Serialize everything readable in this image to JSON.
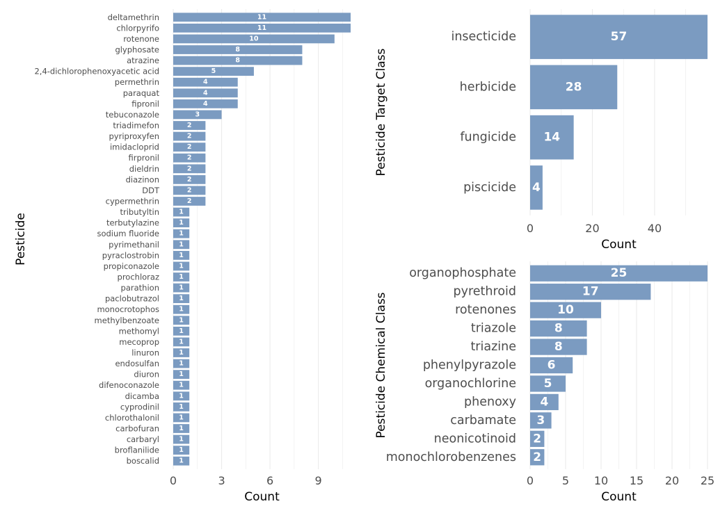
{
  "colors": {
    "bar": "#7b9bc1",
    "grid": "#ebebeb",
    "label_text": "#ffffff",
    "tick_text": "#4d4d4d",
    "axis_title": "#000000"
  },
  "chart_data": [
    {
      "type": "bar",
      "orientation": "horizontal",
      "xlabel": "Count",
      "ylabel": "Pesticide",
      "xlim": [
        0,
        11
      ],
      "xticks": [
        0,
        3,
        6,
        9
      ],
      "grid": true,
      "categories": [
        "deltamethrin",
        "chlorpyrifo",
        "rotenone",
        "glyphosate",
        "atrazine",
        "2,4-dichlorophenoxyacetic acid",
        "permethrin",
        "paraquat",
        "fipronil",
        "tebuconazole",
        "triadimefon",
        "pyriproxyfen",
        "imidacloprid",
        "firpronil",
        "dieldrin",
        "diazinon",
        "DDT",
        "cypermethrin",
        "tributyltin",
        "terbutylazine",
        "sodium fluoride",
        "pyrimethanil",
        "pyraclostrobin",
        "propiconazole",
        "prochloraz",
        "parathion",
        "paclobutrazol",
        "monocrotophos",
        "methylbenzoate",
        "methomyl",
        "mecoprop",
        "linuron",
        "endosulfan",
        "diuron",
        "difenoconazole",
        "dicamba",
        "cyprodinil",
        "chlorothalonil",
        "carbofuran",
        "carbaryl",
        "broflanilide",
        "boscalid"
      ],
      "values": [
        11,
        11,
        10,
        8,
        8,
        5,
        4,
        4,
        4,
        3,
        2,
        2,
        2,
        2,
        2,
        2,
        2,
        2,
        1,
        1,
        1,
        1,
        1,
        1,
        1,
        1,
        1,
        1,
        1,
        1,
        1,
        1,
        1,
        1,
        1,
        1,
        1,
        1,
        1,
        1,
        1,
        1
      ]
    },
    {
      "type": "bar",
      "orientation": "horizontal",
      "xlabel": "Count",
      "ylabel": "Pesticide Target Class",
      "xlim": [
        0,
        57
      ],
      "xticks": [
        0,
        20,
        40
      ],
      "grid": true,
      "categories": [
        "insecticide",
        "herbicide",
        "fungicide",
        "piscicide"
      ],
      "values": [
        57,
        28,
        14,
        4
      ]
    },
    {
      "type": "bar",
      "orientation": "horizontal",
      "xlabel": "Count",
      "ylabel": "Pesticide Chemical Class",
      "xlim": [
        0,
        25
      ],
      "xticks": [
        0,
        5,
        10,
        15,
        20,
        25
      ],
      "grid": true,
      "categories": [
        "organophosphate",
        "pyrethroid",
        "rotenones",
        "triazole",
        "triazine",
        "phenylpyrazole",
        "organochlorine",
        "phenoxy",
        "carbamate",
        "neonicotinoid",
        "monochlorobenzenes"
      ],
      "values": [
        25,
        17,
        10,
        8,
        8,
        6,
        5,
        4,
        3,
        2,
        2
      ]
    }
  ]
}
